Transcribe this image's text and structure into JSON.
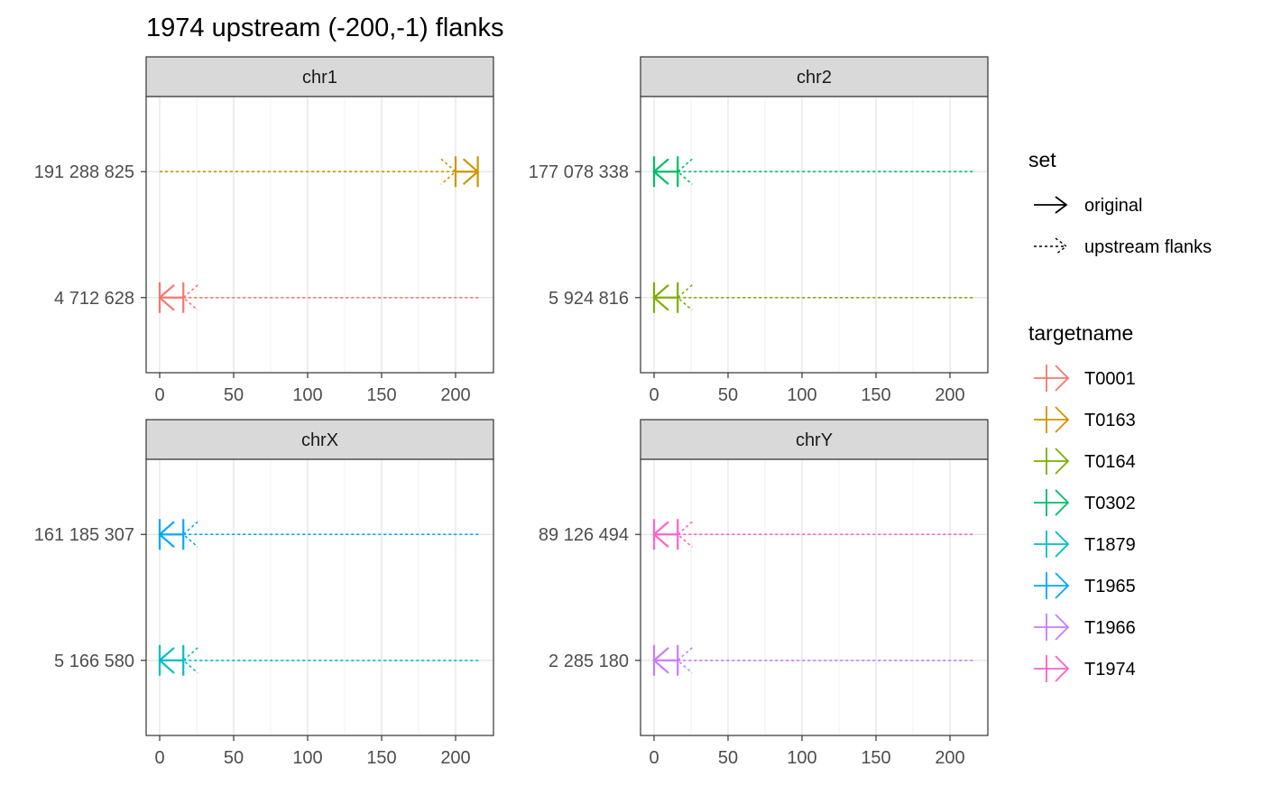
{
  "chart_data": {
    "type": "faceted-segment",
    "title": "1974 upstream (-200,-1) flanks",
    "xlim": [
      0,
      215
    ],
    "x_ticks": [
      "0",
      "50",
      "100",
      "150",
      "200"
    ],
    "x_tick_values": [
      0,
      50,
      100,
      150,
      200
    ],
    "grid": true,
    "legend_position": "right",
    "legends": [
      {
        "title": "set",
        "items": [
          {
            "label": "original",
            "linetype": "solid"
          },
          {
            "label": "upstream flanks",
            "linetype": "dashed"
          }
        ]
      },
      {
        "title": "targetname",
        "items": [
          {
            "label": "T0001",
            "color": "#F8766D"
          },
          {
            "label": "T0163",
            "color": "#CD9600"
          },
          {
            "label": "T0164",
            "color": "#7CAE00"
          },
          {
            "label": "T0302",
            "color": "#00BE67"
          },
          {
            "label": "T1879",
            "color": "#00BFC4"
          },
          {
            "label": "T1965",
            "color": "#00A9FF"
          },
          {
            "label": "T1966",
            "color": "#C77CFF"
          },
          {
            "label": "T1974",
            "color": "#FF61CC"
          }
        ]
      }
    ],
    "panels": [
      {
        "strip": "chr1",
        "rows": [
          {
            "label": "191 288 825",
            "target": "T0163",
            "color": "#CD9600",
            "direction": "right",
            "original": [
              200,
              215
            ],
            "flank": [
              0,
              199
            ]
          },
          {
            "label": "4 712 628",
            "target": "T0001",
            "color": "#F8766D",
            "direction": "left",
            "original": [
              0,
              16
            ],
            "flank": [
              16,
              216
            ]
          }
        ]
      },
      {
        "strip": "chr2",
        "rows": [
          {
            "label": "177 078 338",
            "target": "T0302",
            "color": "#00BE67",
            "direction": "left",
            "original": [
              0,
              16
            ],
            "flank": [
              16,
              216
            ]
          },
          {
            "label": "5 924 816",
            "target": "T0164",
            "color": "#7CAE00",
            "direction": "left",
            "original": [
              0,
              16
            ],
            "flank": [
              16,
              216
            ]
          }
        ]
      },
      {
        "strip": "chrX",
        "rows": [
          {
            "label": "161 185 307",
            "target": "T1965",
            "color": "#00A9FF",
            "direction": "left",
            "original": [
              0,
              16
            ],
            "flank": [
              16,
              216
            ]
          },
          {
            "label": "5 166 580",
            "target": "T1879",
            "color": "#00BFC4",
            "direction": "left",
            "original": [
              0,
              16
            ],
            "flank": [
              16,
              216
            ]
          }
        ]
      },
      {
        "strip": "chrY",
        "rows": [
          {
            "label": "89 126 494",
            "target": "T1974",
            "color": "#FF61CC",
            "direction": "left",
            "original": [
              0,
              16
            ],
            "flank": [
              16,
              216
            ]
          },
          {
            "label": "2 285 180",
            "target": "T1966",
            "color": "#C77CFF",
            "direction": "left",
            "original": [
              0,
              16
            ],
            "flank": [
              16,
              216
            ]
          }
        ]
      }
    ]
  }
}
